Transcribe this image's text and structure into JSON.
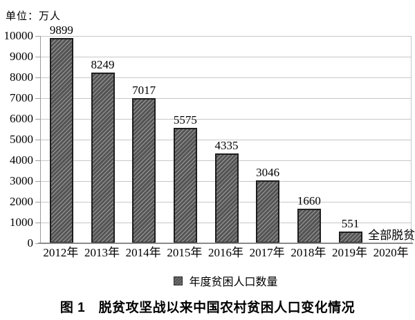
{
  "unit_label": "单位：万人",
  "caption": "图 1　脱贫攻坚战以来中国农村贫困人口变化情况",
  "legend": {
    "label": "年度贫困人口数量"
  },
  "colors": {
    "bar_fill": "#545454",
    "bar_hatch": "#8f8f8f",
    "bar_border": "#1d1d1d",
    "gridline": "#c6c6c6",
    "axis": "#8a8a8a",
    "text": "#000000"
  },
  "chart_data": {
    "type": "bar",
    "title": "图 1　脱贫攻坚战以来中国农村贫困人口变化情况",
    "unit": "万人",
    "categories": [
      "2012年",
      "2013年",
      "2014年",
      "2015年",
      "2016年",
      "2017年",
      "2018年",
      "2019年",
      "2020年"
    ],
    "values": [
      9899,
      8249,
      7017,
      5575,
      4335,
      3046,
      1660,
      551,
      null
    ],
    "data_labels": [
      "9899",
      "8249",
      "7017",
      "5575",
      "4335",
      "3046",
      "1660",
      "551",
      "全部脱贫"
    ],
    "annotations": [
      {
        "category": "2020年",
        "text": "全部脱贫"
      }
    ],
    "legend_label": "年度贫困人口数量",
    "legend_position": "bottom",
    "xlabel": "",
    "ylabel": "万人",
    "ylim": [
      0,
      10000
    ],
    "ytick_step": 1000,
    "grid": true,
    "bar_style": "diagonal-hatch"
  }
}
